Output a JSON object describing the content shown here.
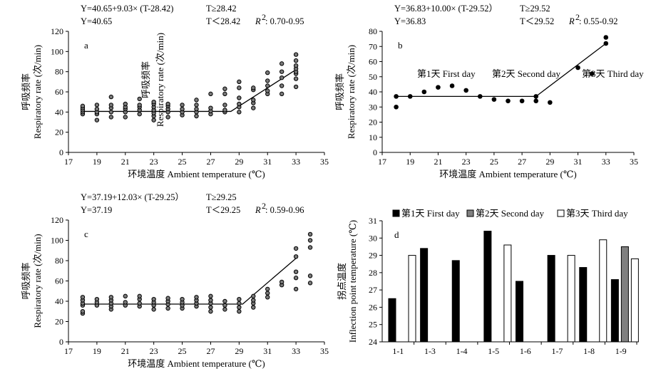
{
  "chart_data": [
    {
      "type": "scatter",
      "panel_label": "a",
      "equation_line1": "Y=40.65+9.03× (T-28.42)",
      "equation_line2": "Y=40.65",
      "condition_line1": "T≥28.42",
      "condition_line2": "T＜28.42",
      "r2_label": "R",
      "r2_sup": "2",
      "r2_value": ": 0.70-0.95",
      "xlabel": "环境温度 Ambient temperature (℃)",
      "ylabel_cn": "呼吸频率",
      "ylabel_en": "Respiratory rate (次/min)",
      "overlay_text_cn": "呼吸频率",
      "overlay_text_en": "Respiratory rate (次/min)",
      "xlim": [
        17,
        35
      ],
      "ylim": [
        0,
        120
      ],
      "xticks": [
        "17",
        "19",
        "21",
        "23",
        "25",
        "27",
        "29",
        "31",
        "33",
        "35"
      ],
      "yticks": [
        "0",
        "20",
        "40",
        "60",
        "80",
        "100",
        "120"
      ],
      "breakpoint": 28.42,
      "fit": {
        "plateau": 40.65,
        "slope": 9.03
      },
      "points": [
        {
          "x": 18,
          "y": [
            38,
            40,
            42,
            44,
            46
          ]
        },
        {
          "x": 19,
          "y": [
            32,
            38,
            40,
            43,
            47
          ]
        },
        {
          "x": 20,
          "y": [
            35,
            40,
            44,
            47,
            55
          ]
        },
        {
          "x": 21,
          "y": [
            35,
            40,
            43,
            45,
            48
          ]
        },
        {
          "x": 22,
          "y": [
            38,
            42,
            45,
            47,
            53
          ]
        },
        {
          "x": 23,
          "y": [
            32,
            36,
            39,
            42,
            45,
            48,
            50
          ]
        },
        {
          "x": 24,
          "y": [
            35,
            40,
            43,
            46,
            48
          ]
        },
        {
          "x": 25,
          "y": [
            37,
            40,
            43,
            47
          ]
        },
        {
          "x": 26,
          "y": [
            36,
            40,
            43,
            47,
            52
          ]
        },
        {
          "x": 27,
          "y": [
            38,
            41,
            44,
            58
          ]
        },
        {
          "x": 28,
          "y": [
            40,
            42,
            47,
            58,
            63
          ]
        },
        {
          "x": 29,
          "y": [
            40,
            45,
            48,
            54,
            64,
            70
          ]
        },
        {
          "x": 30,
          "y": [
            44,
            49,
            52,
            62,
            64
          ]
        },
        {
          "x": 31,
          "y": [
            58,
            61,
            66,
            71,
            79
          ]
        },
        {
          "x": 32,
          "y": [
            58,
            66,
            74,
            80,
            88
          ]
        },
        {
          "x": 33,
          "y": [
            65,
            73,
            78,
            80,
            83,
            86,
            91,
            97
          ]
        }
      ]
    },
    {
      "type": "scatter",
      "panel_label": "b",
      "equation_line1": "Y=36.83+10.00× (T-29.52）",
      "equation_line2": "Y=36.83",
      "condition_line1": "T≥29.52",
      "condition_line2": "T＜29.52",
      "r2_label": "R",
      "r2_sup": "2",
      "r2_value": ": 0.55-0.92",
      "xlabel": "环境温度 Ambient temperature (℃)",
      "ylabel_cn": "呼吸频率",
      "ylabel_en": "Respiratory rate (次/min)",
      "xlim": [
        17,
        35
      ],
      "ylim": [
        0,
        80
      ],
      "xticks": [
        "17",
        "19",
        "21",
        "23",
        "25",
        "27",
        "29",
        "31",
        "33",
        "35"
      ],
      "yticks": [
        "0",
        "10",
        "20",
        "30",
        "40",
        "50",
        "60",
        "70",
        "80"
      ],
      "day_labels": [
        "第1天 First day",
        "第2天 Second day",
        "第3天 Third day"
      ],
      "points": [
        {
          "x": 18,
          "y": 37
        },
        {
          "x": 18,
          "y": 30
        },
        {
          "x": 19,
          "y": 37
        },
        {
          "x": 20,
          "y": 40
        },
        {
          "x": 21,
          "y": 43
        },
        {
          "x": 22,
          "y": 44
        },
        {
          "x": 23,
          "y": 41
        },
        {
          "x": 24,
          "y": 37
        },
        {
          "x": 25,
          "y": 35
        },
        {
          "x": 26,
          "y": 34
        },
        {
          "x": 27,
          "y": 34
        },
        {
          "x": 28,
          "y": 34
        },
        {
          "x": 28,
          "y": 37
        },
        {
          "x": 29,
          "y": 33
        },
        {
          "x": 31,
          "y": 56
        },
        {
          "x": 32,
          "y": 52
        },
        {
          "x": 33,
          "y": 72
        },
        {
          "x": 33,
          "y": 76
        }
      ],
      "line": [
        {
          "x": 18,
          "y": 37
        },
        {
          "x": 28,
          "y": 37
        },
        {
          "x": 33,
          "y": 72
        }
      ]
    },
    {
      "type": "scatter",
      "panel_label": "c",
      "equation_line1": "Y=37.19+12.03× (T-29.25）",
      "equation_line2": "Y=37.19",
      "condition_line1": "T≥29.25",
      "condition_line2": "T＜29.25",
      "r2_label": "R",
      "r2_sup": "2",
      "r2_value": ": 0.59-0.96",
      "xlabel": "环境温度 Ambient temperature (℃)",
      "ylabel_cn": "呼吸频率",
      "ylabel_en": "Respiratory rate (次/min)",
      "xlim": [
        17,
        35
      ],
      "ylim": [
        0,
        120
      ],
      "xticks": [
        "17",
        "19",
        "21",
        "23",
        "25",
        "27",
        "29",
        "31",
        "33",
        "35"
      ],
      "yticks": [
        "0",
        "20",
        "40",
        "60",
        "80",
        "100",
        "120"
      ],
      "breakpoint": 29.25,
      "fit": {
        "plateau": 37.19,
        "slope": 12.03
      },
      "points": [
        {
          "x": 18,
          "y": [
            28,
            30,
            36,
            38,
            41,
            44
          ]
        },
        {
          "x": 19,
          "y": [
            36,
            39,
            42
          ]
        },
        {
          "x": 20,
          "y": [
            32,
            35,
            38,
            41,
            44
          ]
        },
        {
          "x": 21,
          "y": [
            36,
            39,
            45
          ]
        },
        {
          "x": 22,
          "y": [
            35,
            38,
            42,
            45
          ]
        },
        {
          "x": 23,
          "y": [
            32,
            36,
            39,
            42
          ]
        },
        {
          "x": 24,
          "y": [
            33,
            37,
            40,
            43
          ]
        },
        {
          "x": 25,
          "y": [
            33,
            36,
            39,
            42
          ]
        },
        {
          "x": 26,
          "y": [
            35,
            38,
            41,
            44
          ]
        },
        {
          "x": 27,
          "y": [
            30,
            34,
            38,
            41,
            45
          ]
        },
        {
          "x": 28,
          "y": [
            32,
            36,
            40
          ]
        },
        {
          "x": 29,
          "y": [
            30,
            34,
            38,
            42
          ]
        },
        {
          "x": 30,
          "y": [
            34,
            38,
            41,
            45
          ]
        },
        {
          "x": 31,
          "y": [
            44,
            48,
            52
          ]
        },
        {
          "x": 32,
          "y": [
            56,
            59
          ]
        },
        {
          "x": 33,
          "y": [
            52,
            63,
            69,
            84,
            92
          ]
        },
        {
          "x": 34,
          "y": [
            58,
            65,
            93,
            100,
            106
          ]
        }
      ]
    },
    {
      "type": "bar",
      "panel_label": "d",
      "categories": [
        "1-1",
        "1-3",
        "1-4",
        "1-5",
        "1-6",
        "1-7",
        "1-8",
        "1-9"
      ],
      "ylabel_cn": "拐点温度",
      "ylabel_en": "Inflection point temperature (℃)",
      "ylim": [
        24,
        31
      ],
      "yticks": [
        "24",
        "25",
        "26",
        "27",
        "28",
        "29",
        "30",
        "31"
      ],
      "series": [
        {
          "name": "第1天 First day",
          "color": "#000000",
          "values": [
            26.5,
            29.4,
            28.7,
            30.4,
            27.5,
            29.0,
            28.3,
            27.6
          ]
        },
        {
          "name": "第2天 Second day",
          "color": "#808080",
          "values": [
            null,
            null,
            null,
            null,
            null,
            null,
            null,
            29.5
          ]
        },
        {
          "name": "第3天 Third day",
          "color": "#ffffff",
          "values": [
            29.0,
            null,
            null,
            29.6,
            null,
            29.0,
            29.9,
            28.8
          ]
        }
      ]
    }
  ]
}
